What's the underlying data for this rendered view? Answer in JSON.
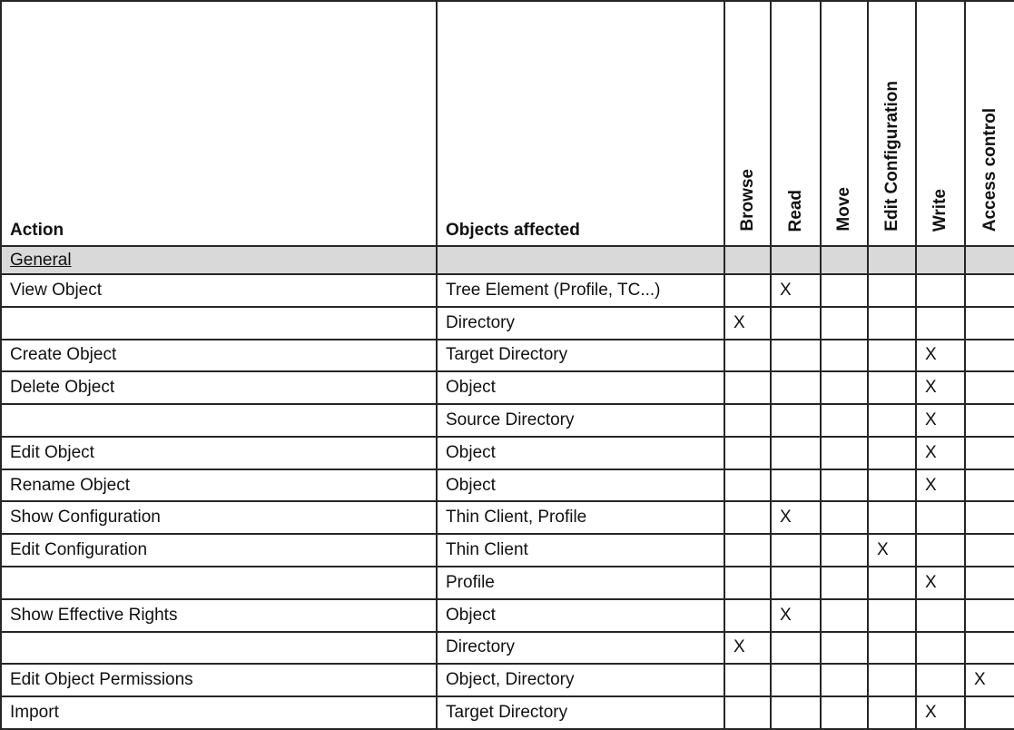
{
  "table": {
    "title_columns": {
      "action": "Action",
      "objects": "Objects affected"
    },
    "rotated_columns": [
      "Browse",
      "Read",
      "Move",
      "Edit Configuration",
      "Write",
      "Access control"
    ],
    "section_label": "General",
    "mark_symbol": "X",
    "rows": [
      {
        "action": "View Object",
        "objects": "Tree Element (Profile, TC...)",
        "marks": [
          "Read"
        ]
      },
      {
        "action": "",
        "objects": "Directory",
        "marks": [
          "Browse"
        ]
      },
      {
        "action": "Create Object",
        "objects": "Target Directory",
        "marks": [
          "Write"
        ]
      },
      {
        "action": "Delete Object",
        "objects": "Object",
        "marks": [
          "Write"
        ]
      },
      {
        "action": "",
        "objects": "Source Directory",
        "marks": [
          "Write"
        ]
      },
      {
        "action": "Edit Object",
        "objects": "Object",
        "marks": [
          "Write"
        ]
      },
      {
        "action": "Rename Object",
        "objects": "Object",
        "marks": [
          "Write"
        ]
      },
      {
        "action": "Show Configuration",
        "objects": "Thin Client, Profile",
        "marks": [
          "Read"
        ]
      },
      {
        "action": "Edit Configuration",
        "objects": "Thin Client",
        "marks": [
          "Edit Configuration"
        ]
      },
      {
        "action": "",
        "objects": "Profile",
        "marks": [
          "Write"
        ]
      },
      {
        "action": "Show Effective Rights",
        "objects": "Object",
        "marks": [
          "Read"
        ]
      },
      {
        "action": "",
        "objects": "Directory",
        "marks": [
          "Browse"
        ]
      },
      {
        "action": "Edit Object Permissions",
        "objects": "Object, Directory",
        "marks": [
          "Access control"
        ]
      },
      {
        "action": "Import",
        "objects": "Target Directory",
        "marks": [
          "Write"
        ]
      }
    ],
    "colors": {
      "section_row_bg": "#d9d9d9",
      "border": "#262626",
      "text": "#111111",
      "background": "#ffffff"
    }
  }
}
